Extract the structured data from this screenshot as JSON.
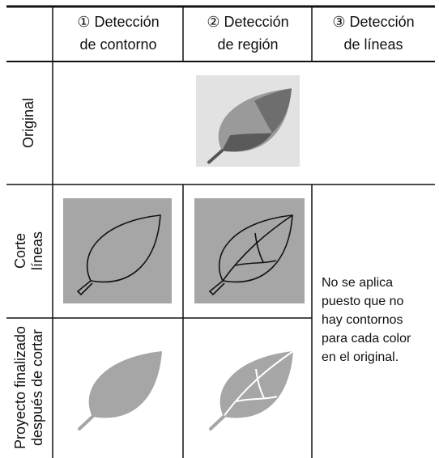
{
  "table": {
    "header": [
      [
        "① Detección",
        "de contorno"
      ],
      [
        "② Detección",
        "de región"
      ],
      [
        "③ Detección",
        "de líneas"
      ]
    ],
    "row_labels": [
      [
        "Original"
      ],
      [
        "Corte",
        "líneas"
      ],
      [
        "Proyecto finalizado",
        "después de cortar"
      ]
    ],
    "note": [
      "No se aplica",
      "puesto que no",
      "hay contornos",
      "para cada color",
      "en el original."
    ]
  }
}
